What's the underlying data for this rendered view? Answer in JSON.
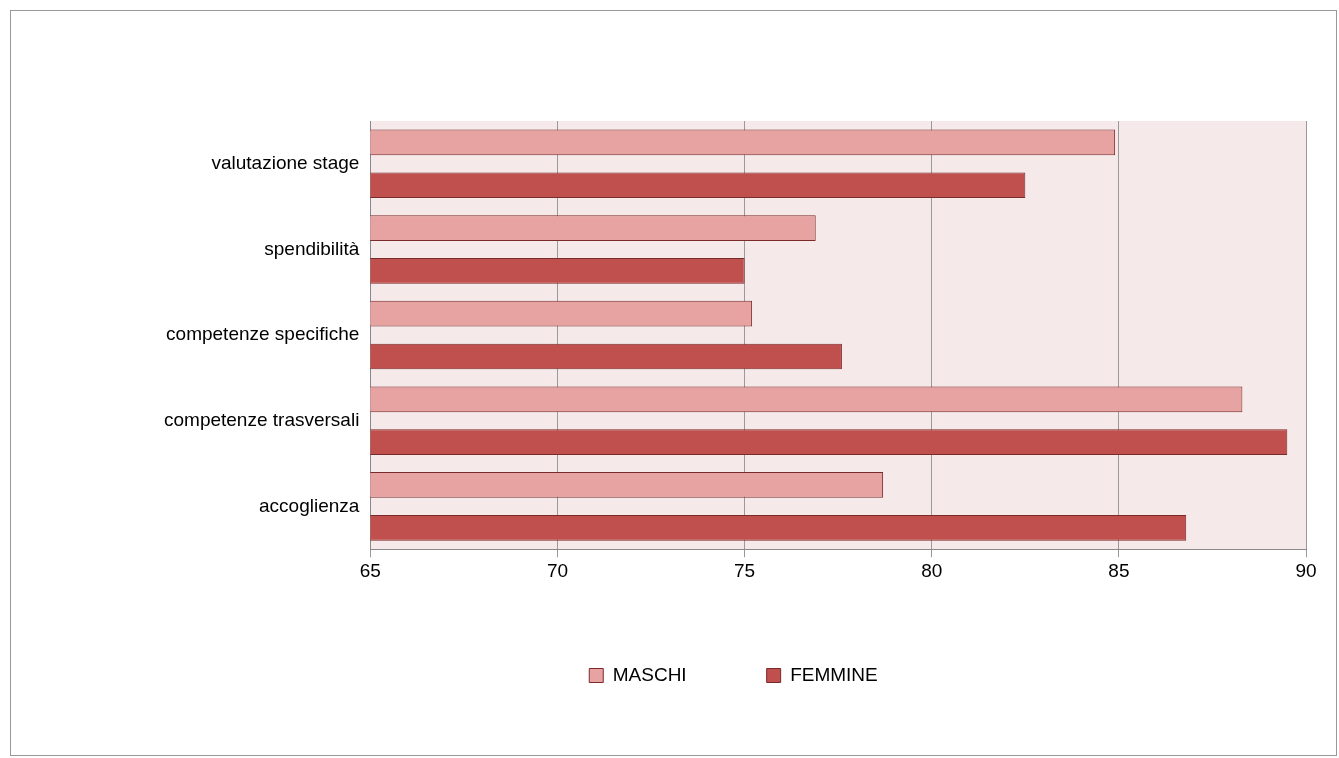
{
  "chart_data": {
    "type": "bar",
    "orientation": "horizontal",
    "categories": [
      "valutazione stage",
      "spendibilità",
      "competenze specifiche",
      "competenze trasversali",
      "accoglienza"
    ],
    "series": [
      {
        "name": "MASCHI",
        "color": "#e6a3a2",
        "values": [
          84.9,
          76.9,
          75.2,
          88.3,
          78.7
        ]
      },
      {
        "name": "FEMMINE",
        "color": "#c0504d",
        "values": [
          82.5,
          75.0,
          77.6,
          89.5,
          86.8
        ]
      }
    ],
    "xlim": [
      65,
      90
    ],
    "xticks": [
      65,
      70,
      75,
      80,
      85,
      90
    ],
    "grid": "x",
    "legend": "bottom"
  }
}
